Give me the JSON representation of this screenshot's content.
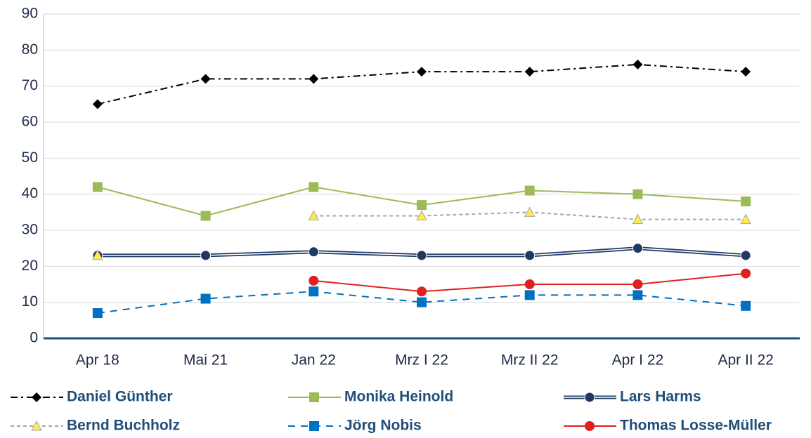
{
  "chart_data": {
    "type": "line",
    "categories": [
      "Apr 18",
      "Mai 21",
      "Jan 22",
      "Mrz I 22",
      "Mrz II 22",
      "Apr I 22",
      "Apr II 22"
    ],
    "series": [
      {
        "name": "Daniel Günther",
        "color": "#000000",
        "marker": "diamond",
        "dash": "dashdot",
        "values": [
          65,
          72,
          72,
          74,
          74,
          76,
          74
        ]
      },
      {
        "name": "Monika Heinold",
        "color": "#9bbb59",
        "marker": "square",
        "dash": "solid",
        "values": [
          42,
          34,
          42,
          37,
          41,
          40,
          38
        ]
      },
      {
        "name": "Lars Harms",
        "color": "#1f3864",
        "marker": "circle",
        "dash": "double",
        "values": [
          23,
          23,
          24,
          23,
          23,
          25,
          23
        ]
      },
      {
        "name": "Bernd Buchholz",
        "color": "#a6a6a6",
        "marker": "triangle",
        "dash": "dashed",
        "values": [
          23,
          null,
          34,
          34,
          35,
          33,
          33
        ]
      },
      {
        "name": "Jörg Nobis",
        "color": "#0070c0",
        "marker": "square",
        "dash": "longdash",
        "values": [
          7,
          11,
          13,
          10,
          12,
          12,
          9
        ]
      },
      {
        "name": "Thomas Losse-Müller",
        "color": "#e02020",
        "marker": "circle",
        "dash": "solid",
        "values": [
          null,
          null,
          16,
          13,
          15,
          15,
          18
        ]
      }
    ],
    "ylim": [
      0,
      90
    ],
    "yticks": [
      0,
      10,
      20,
      30,
      40,
      50,
      60,
      70,
      80,
      90
    ],
    "grid": true,
    "legend": "bottom"
  }
}
